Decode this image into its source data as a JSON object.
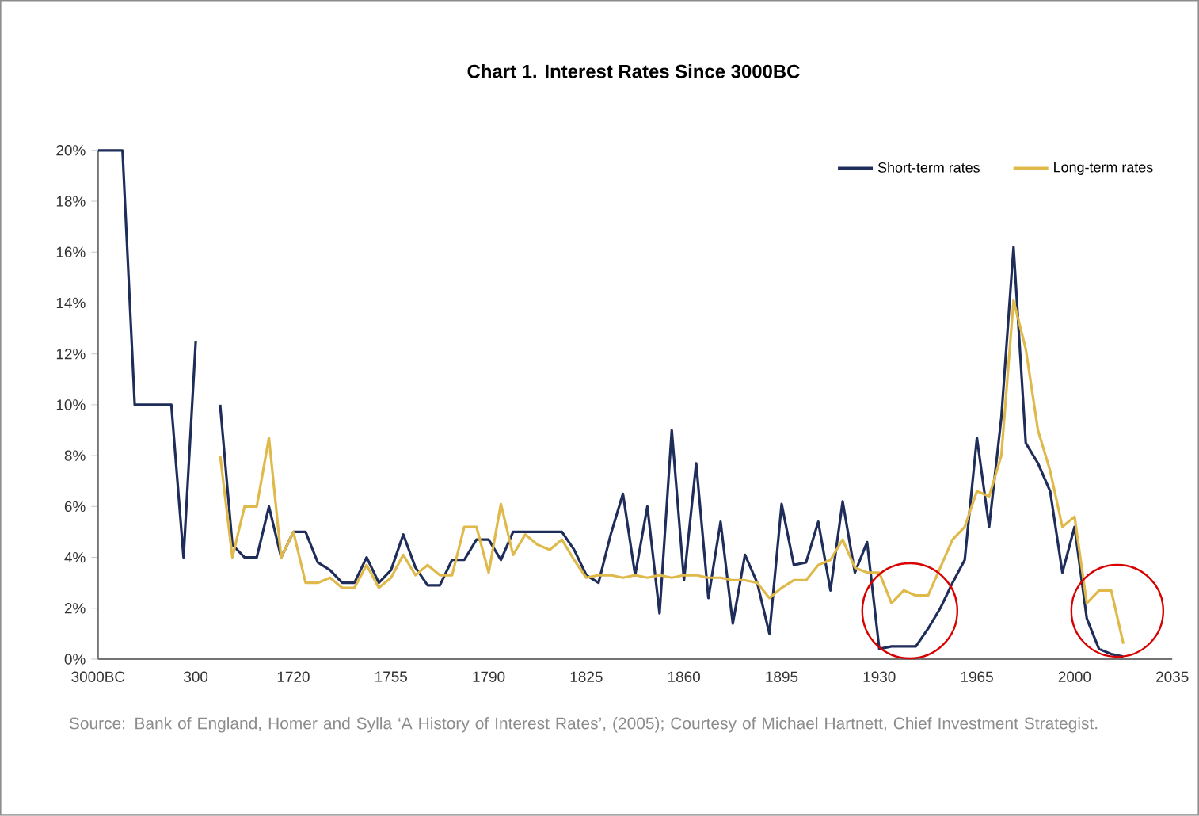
{
  "chart_data": {
    "type": "line",
    "title": "Chart 1. Interest Rates Since 3000BC",
    "categories": [
      "3000BC",
      null,
      null,
      null,
      null,
      null,
      null,
      null,
      "300",
      null,
      null,
      null,
      null,
      null,
      null,
      null,
      "1720",
      null,
      null,
      null,
      null,
      null,
      null,
      null,
      "1755",
      null,
      null,
      null,
      null,
      null,
      null,
      null,
      "1790",
      null,
      null,
      null,
      null,
      null,
      null,
      null,
      "1825",
      null,
      null,
      null,
      null,
      null,
      null,
      null,
      "1860",
      null,
      null,
      null,
      null,
      null,
      null,
      null,
      "1895",
      null,
      null,
      null,
      null,
      null,
      null,
      null,
      "1930",
      null,
      null,
      null,
      null,
      null,
      null,
      null,
      "1965",
      null,
      null,
      null,
      null,
      null,
      null,
      null,
      "2000",
      null,
      null,
      null,
      null,
      null,
      null,
      null,
      "2035"
    ],
    "series": [
      {
        "name": "Short-term rates",
        "color": "#1f2d5a",
        "values": [
          20,
          20,
          20,
          10,
          10,
          10,
          10,
          4,
          12.5,
          null,
          10,
          4.5,
          4,
          4,
          6,
          4,
          5,
          5,
          3.8,
          3.5,
          3,
          3,
          4,
          3,
          3.5,
          4.9,
          3.6,
          2.9,
          2.9,
          3.9,
          3.9,
          4.7,
          4.7,
          3.9,
          5,
          5,
          5,
          5,
          5,
          4.3,
          3.3,
          3,
          4.9,
          6.5,
          3.3,
          6,
          1.8,
          9,
          3.1,
          7.7,
          2.4,
          5.4,
          1.4,
          4.1,
          3,
          1,
          6.1,
          3.7,
          3.8,
          5.4,
          2.7,
          6.2,
          3.4,
          4.6,
          0.4,
          0.5,
          0.5,
          0.5,
          1.2,
          2,
          3,
          3.9,
          8.7,
          5.2,
          9.5,
          16.2,
          8.5,
          7.7,
          6.6,
          3.4,
          5.2,
          1.6,
          0.4,
          0.2,
          0.1,
          null,
          null,
          null,
          null
        ]
      },
      {
        "name": "Long-term rates",
        "color": "#e0b94b",
        "values": [
          null,
          null,
          null,
          null,
          null,
          null,
          null,
          null,
          null,
          null,
          8,
          4,
          6,
          6,
          8.7,
          4,
          5,
          3,
          3,
          3.2,
          2.8,
          2.8,
          3.7,
          2.8,
          3.2,
          4.1,
          3.3,
          3.7,
          3.3,
          3.3,
          5.2,
          5.2,
          3.4,
          6.1,
          4.1,
          4.9,
          4.5,
          4.3,
          4.7,
          3.9,
          3.2,
          3.3,
          3.3,
          3.2,
          3.3,
          3.2,
          3.3,
          3.2,
          3.3,
          3.3,
          3.2,
          3.2,
          3.1,
          3.1,
          3,
          2.4,
          2.8,
          3.1,
          3.1,
          3.7,
          3.9,
          4.7,
          3.6,
          3.4,
          3.4,
          2.2,
          2.7,
          2.5,
          2.5,
          3.6,
          4.7,
          5.2,
          6.6,
          6.4,
          8,
          14.1,
          12.2,
          9,
          7.4,
          5.2,
          5.6,
          2.2,
          2.7,
          2.7,
          0.6,
          null,
          null,
          null,
          null
        ]
      }
    ],
    "ylim": [
      0,
      20
    ],
    "yticks": [
      {
        "value": 0,
        "label": "0%"
      },
      {
        "value": 2,
        "label": "2%"
      },
      {
        "value": 4,
        "label": "4%"
      },
      {
        "value": 6,
        "label": "6%"
      },
      {
        "value": 8,
        "label": "8%"
      },
      {
        "value": 10,
        "label": "10%"
      },
      {
        "value": 12,
        "label": "12%"
      },
      {
        "value": 14,
        "label": "14%"
      },
      {
        "value": 16,
        "label": "16%"
      },
      {
        "value": 18,
        "label": "18%"
      },
      {
        "value": 20,
        "label": "20%"
      }
    ],
    "legend": "top right",
    "grid": false,
    "marker": "none",
    "line_style": "solid",
    "annotations": [
      "Source: Bank of England, Homer and Sylla ‘A History of Interest Rates’, (2005); Courtesy of Michael Hartnett, Chief Investment Strategist."
    ]
  }
}
